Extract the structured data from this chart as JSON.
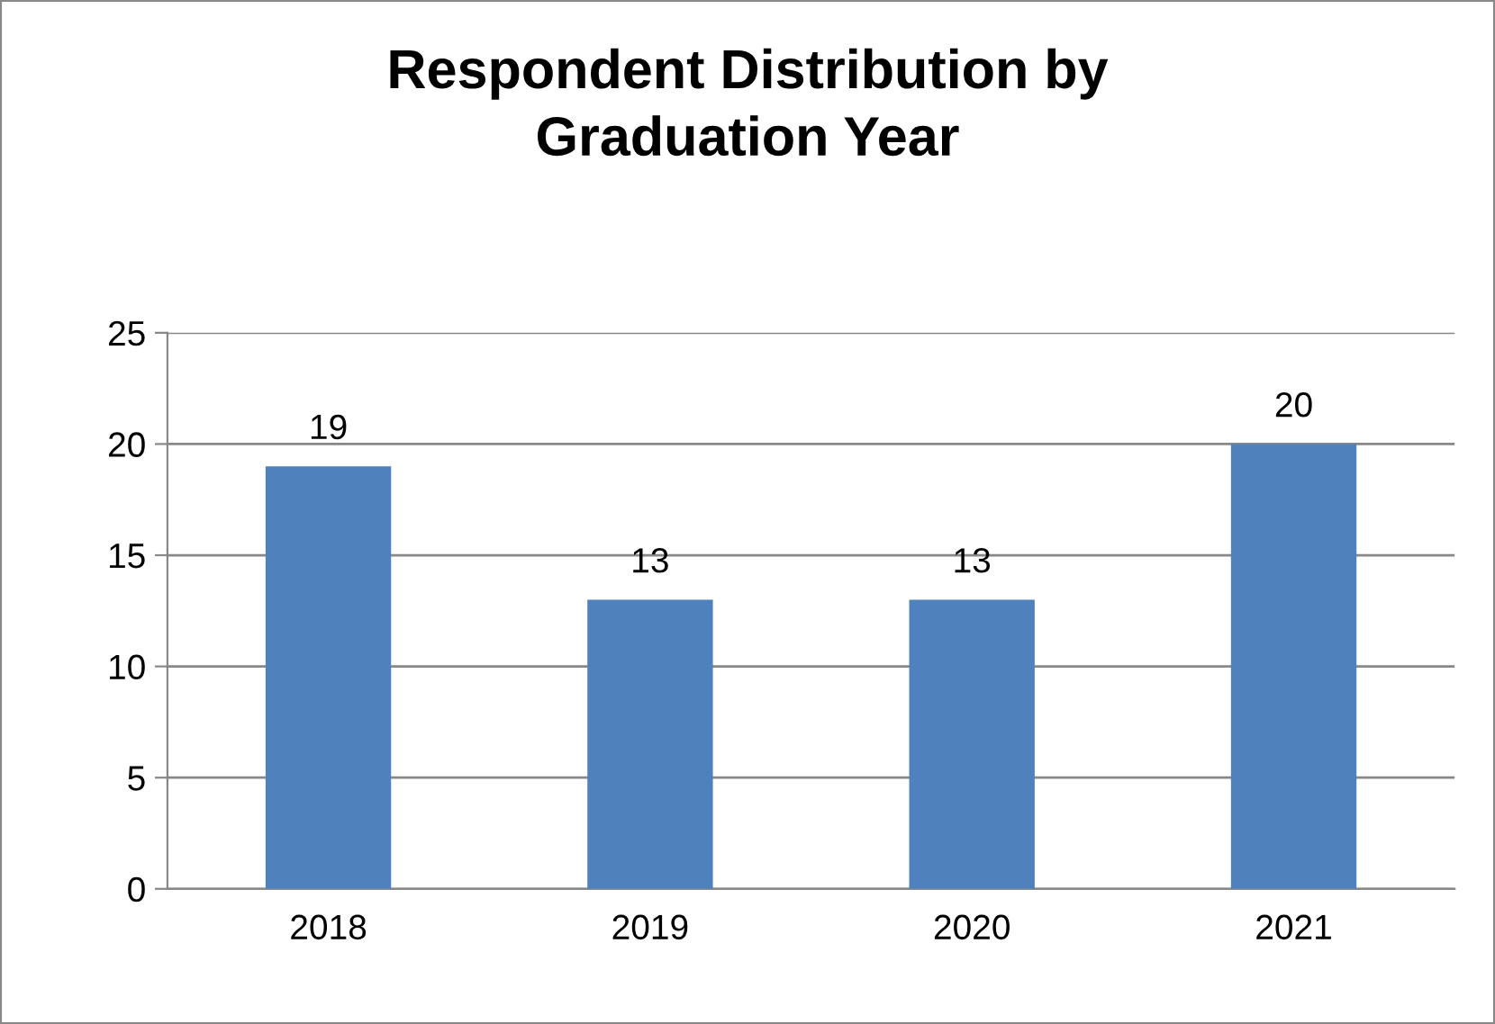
{
  "chart_data": {
    "type": "bar",
    "title": "Respondent Distribution by\nGraduation Year",
    "categories": [
      "2018",
      "2019",
      "2020",
      "2021"
    ],
    "values": [
      19,
      13,
      13,
      20
    ],
    "color": "#4f81bd",
    "ylim": [
      0,
      25
    ],
    "yticks": [
      0,
      5,
      10,
      15,
      20,
      25
    ],
    "grid": "y",
    "data_labels": true,
    "legend": false
  }
}
